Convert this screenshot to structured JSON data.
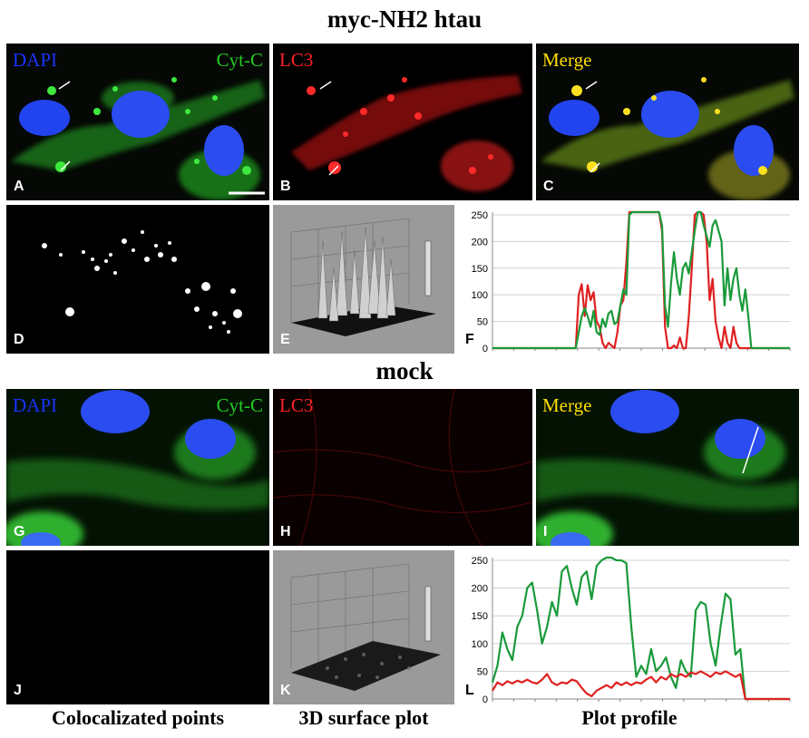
{
  "titles": {
    "top": "myc-NH2 htau",
    "mock": "mock"
  },
  "captions": [
    "Colocalizated points",
    "3D surface plot",
    "Plot profile"
  ],
  "panel_labels": {
    "A": "A",
    "B": "B",
    "C": "C",
    "D": "D",
    "E": "E",
    "F": "F",
    "G": "G",
    "H": "H",
    "I": "I",
    "J": "J",
    "K": "K",
    "L": "L"
  },
  "channels": {
    "dapi": "DAPI",
    "cytc": "Cyt-C",
    "lc3": "LC3",
    "merge": "Merge"
  },
  "colors": {
    "dapi": "#1a33ff",
    "cytc": "#22cc22",
    "lc3": "#ff2222",
    "merge": "#ffdd00",
    "green_series": "#1a9a3a",
    "red_series": "#e02020"
  },
  "chart_data": [
    {
      "type": "line",
      "panel": "F",
      "yticks": [
        "250",
        "200",
        "150",
        "100",
        "50",
        "0"
      ],
      "ylim": [
        0,
        255
      ],
      "x": [
        0,
        10,
        20,
        25,
        28,
        29,
        30,
        31,
        32,
        33,
        34,
        35,
        36,
        37,
        38,
        39,
        40,
        41,
        42,
        43,
        44,
        45,
        46,
        47,
        48,
        49,
        50,
        51,
        52,
        53,
        54,
        55,
        56,
        57,
        58,
        59,
        60,
        61,
        62,
        63,
        64,
        65,
        66,
        67,
        68,
        69,
        70,
        71,
        72,
        73,
        74,
        75,
        76,
        77,
        78,
        79,
        80,
        81,
        82,
        83,
        84,
        85,
        86,
        87,
        88,
        89,
        90,
        91,
        92,
        93,
        94,
        95,
        96,
        97,
        98,
        99,
        100
      ],
      "series": [
        {
          "values": [
            0,
            0,
            0,
            0,
            0,
            100,
            120,
            60,
            118,
            90,
            105,
            50,
            40,
            10,
            0,
            10,
            5,
            0,
            30,
            80,
            90,
            160,
            255,
            255,
            255,
            255,
            255,
            255,
            255,
            255,
            255,
            255,
            255,
            220,
            40,
            0,
            0,
            5,
            0,
            20,
            0,
            0,
            60,
            150,
            250,
            255,
            255,
            250,
            200,
            90,
            130,
            50,
            20,
            0,
            40,
            10,
            0,
            40,
            10,
            0,
            0,
            0,
            0,
            0,
            0,
            0,
            0,
            0,
            0,
            0,
            0,
            0,
            0,
            0,
            0,
            0,
            0
          ]
        },
        {
          "values": [
            0,
            0,
            0,
            0,
            0,
            30,
            60,
            75,
            60,
            40,
            70,
            30,
            25,
            55,
            40,
            65,
            70,
            45,
            50,
            80,
            110,
            100,
            250,
            255,
            255,
            255,
            255,
            255,
            255,
            255,
            255,
            255,
            255,
            230,
            80,
            40,
            120,
            180,
            130,
            100,
            150,
            160,
            140,
            180,
            220,
            255,
            255,
            230,
            210,
            190,
            230,
            240,
            220,
            200,
            80,
            150,
            90,
            130,
            150,
            100,
            70,
            110,
            60,
            0,
            0,
            0,
            0,
            0,
            0,
            0,
            0,
            0,
            0,
            0,
            0,
            0,
            0
          ]
        }
      ]
    },
    {
      "type": "line",
      "panel": "L",
      "yticks": [
        "250",
        "200",
        "150",
        "100",
        "50",
        "0"
      ],
      "ylim": [
        0,
        255
      ],
      "x": [
        0,
        1,
        2,
        3,
        4,
        5,
        6,
        7,
        8,
        9,
        10,
        11,
        12,
        13,
        14,
        15,
        16,
        17,
        18,
        19,
        20,
        21,
        22,
        23,
        24,
        25,
        26,
        27,
        28,
        29,
        30,
        31,
        32,
        33,
        34,
        35,
        36,
        37,
        38,
        39,
        40,
        41,
        42,
        43,
        44,
        45,
        46,
        47,
        48,
        49,
        50,
        51,
        52,
        53,
        54,
        55,
        56,
        57,
        58,
        59,
        60
      ],
      "series": [
        {
          "values": [
            30,
            60,
            120,
            90,
            70,
            130,
            150,
            200,
            210,
            160,
            100,
            130,
            175,
            150,
            230,
            240,
            200,
            170,
            220,
            230,
            180,
            240,
            250,
            255,
            255,
            250,
            250,
            245,
            130,
            40,
            60,
            45,
            90,
            50,
            60,
            75,
            40,
            20,
            70,
            50,
            40,
            160,
            175,
            170,
            100,
            60,
            130,
            190,
            180,
            80,
            90,
            0,
            0,
            0,
            0,
            0,
            0,
            0,
            0,
            0,
            0
          ]
        },
        {
          "values": [
            15,
            30,
            25,
            32,
            28,
            33,
            30,
            35,
            30,
            28,
            35,
            45,
            30,
            25,
            30,
            28,
            35,
            32,
            20,
            10,
            5,
            15,
            20,
            25,
            20,
            30,
            25,
            30,
            25,
            30,
            28,
            35,
            40,
            30,
            40,
            35,
            45,
            40,
            45,
            40,
            48,
            45,
            50,
            45,
            40,
            48,
            45,
            50,
            45,
            40,
            45,
            0,
            0,
            0,
            0,
            0,
            0,
            0,
            0,
            0,
            0
          ]
        }
      ]
    }
  ]
}
